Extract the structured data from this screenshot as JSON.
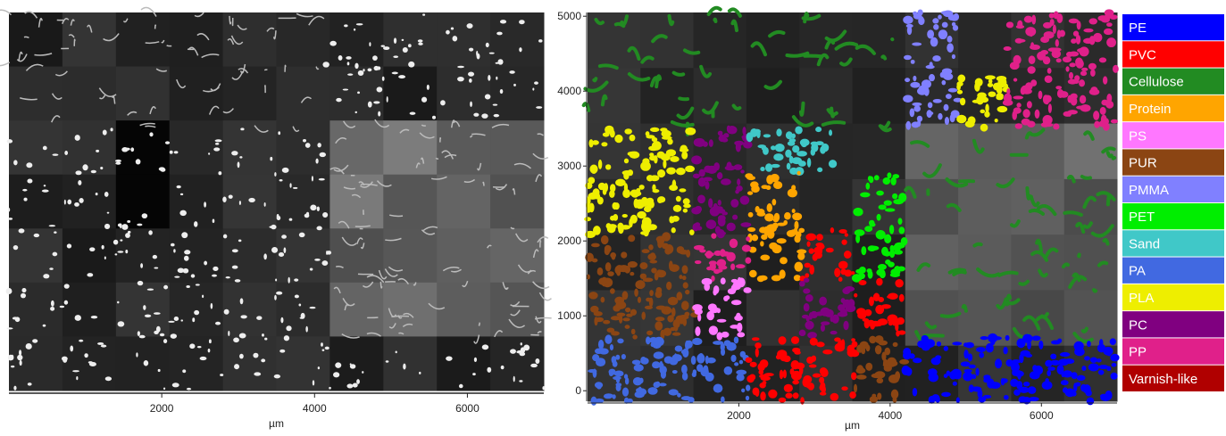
{
  "left_panel": {
    "xlim": [
      0,
      7000
    ],
    "xticks": [
      2000,
      4000,
      6000
    ],
    "xlabel": "µm"
  },
  "right_panel": {
    "xlim": [
      0,
      7000
    ],
    "xticks": [
      2000,
      4000,
      6000
    ],
    "ylim": [
      -140,
      5050
    ],
    "yticks": [
      0,
      1000,
      2000,
      3000,
      4000,
      5000
    ],
    "xlabel": "µm"
  },
  "legend": {
    "items": [
      {
        "name": "PE",
        "color": "#0000ff"
      },
      {
        "name": "PVC",
        "color": "#ff0000"
      },
      {
        "name": "Cellulose",
        "color": "#228b22"
      },
      {
        "name": "Protein",
        "color": "#ffa500"
      },
      {
        "name": "PS",
        "color": "#ff77ff"
      },
      {
        "name": "PUR",
        "color": "#8b4513"
      },
      {
        "name": "PMMA",
        "color": "#8080ff"
      },
      {
        "name": "PET",
        "color": "#00ee00"
      },
      {
        "name": "Sand",
        "color": "#40c8c8"
      },
      {
        "name": "PA",
        "color": "#4169e1"
      },
      {
        "name": "PLA",
        "color": "#eeee00"
      },
      {
        "name": "PC",
        "color": "#800080"
      },
      {
        "name": "PP",
        "color": "#e0208a"
      },
      {
        "name": "Varnish-like",
        "color": "#b00000"
      }
    ]
  }
}
